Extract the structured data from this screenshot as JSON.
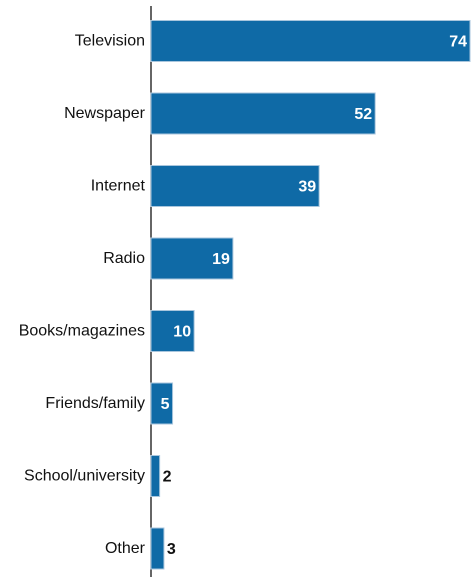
{
  "chart_data": {
    "type": "bar",
    "orientation": "horizontal",
    "categories": [
      "Television",
      "Newspaper",
      "Internet",
      "Radio",
      "Books/magazines",
      "Friends/family",
      "School/university",
      "Other"
    ],
    "values": [
      74,
      52,
      39,
      19,
      10,
      5,
      2,
      3
    ],
    "value_labels": [
      "74",
      "52",
      "39",
      "19",
      "10",
      "5",
      "2",
      "3"
    ],
    "xlim": [
      0,
      74
    ],
    "grid": false,
    "legend": "none",
    "colors": {
      "bar": "#0f6aa6",
      "bar_stroke": "#a9c6dd",
      "label_inside": "#ffffff",
      "label_outside": "#111111",
      "axis": "#000000"
    }
  }
}
